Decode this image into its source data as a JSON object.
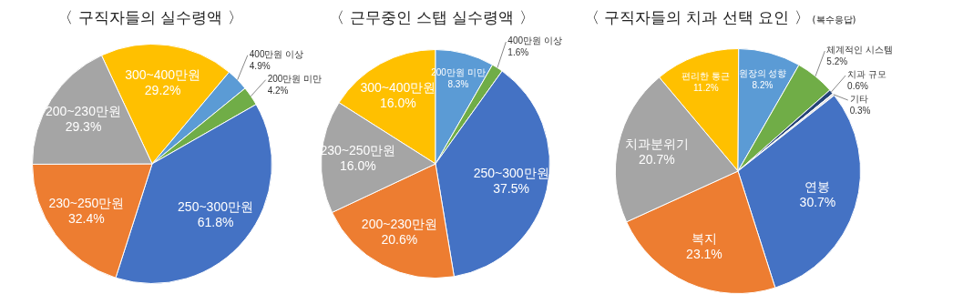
{
  "chart_data": [
    {
      "type": "pie",
      "title": "〈 구직자들의 실수령액 〉",
      "categories": [
        "300~400만원",
        "400만원 이상",
        "200만원 미만",
        "250~300만원",
        "230~250만원",
        "200~230만원"
      ],
      "values": [
        29.2,
        4.9,
        4.2,
        61.8,
        32.4,
        29.3
      ],
      "colors": [
        "#ffc000",
        "#5b9bd5",
        "#70ad47",
        "#4472c4",
        "#ed7d31",
        "#a5a5a5"
      ],
      "value_labels": [
        "29.2%",
        "4.9%",
        "4.2%",
        "61.8%",
        "32.4%",
        "29.3%"
      ]
    },
    {
      "type": "pie",
      "title": "〈 근무중인 스탭 실수령액 〉",
      "categories": [
        "300~400만원",
        "200만원 미만",
        "400만원 이상",
        "250~300만원",
        "200~230만원",
        "230~250만원"
      ],
      "values": [
        16.0,
        8.3,
        1.6,
        37.5,
        20.6,
        16.0
      ],
      "colors": [
        "#ffc000",
        "#5b9bd5",
        "#70ad47",
        "#4472c4",
        "#ed7d31",
        "#a5a5a5"
      ],
      "value_labels": [
        "16.0%",
        "8.3%",
        "1.6%",
        "37.5%",
        "20.6%",
        "16.0%"
      ]
    },
    {
      "type": "pie",
      "title": "〈 구직자들의 치과 선택 요인 〉",
      "subtitle": "(복수응답)",
      "categories": [
        "편리한 통근",
        "원장의 성향",
        "체계적인 시스템",
        "치과 규모",
        "기타",
        "연봉",
        "복지",
        "치과분위기"
      ],
      "values": [
        11.2,
        8.2,
        5.2,
        0.6,
        0.3,
        30.7,
        23.1,
        20.7
      ],
      "colors": [
        "#ffc000",
        "#5b9bd5",
        "#70ad47",
        "#264478",
        "#e7e6e6",
        "#4472c4",
        "#ed7d31",
        "#a5a5a5"
      ],
      "value_labels": [
        "11.2%",
        "8.2%",
        "5.2%",
        "0.6%",
        "0.3%",
        "30.7%",
        "23.1%",
        "20.7%"
      ]
    }
  ]
}
